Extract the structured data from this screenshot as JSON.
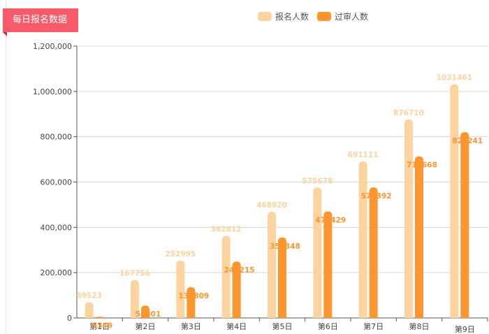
{
  "title": "每日报名数据",
  "colors": {
    "series1": "#fdd3a0",
    "series2": "#fd962f",
    "ribbon": "#f75b6a"
  },
  "chart_data": {
    "type": "bar",
    "categories": [
      "第1日",
      "第2日",
      "第3日",
      "第4日",
      "第5日",
      "第6日",
      "第7日",
      "第8日",
      "第9日"
    ],
    "series": [
      {
        "name": "报名人数",
        "values": [
          69523,
          167756,
          252995,
          362612,
          468920,
          575678,
          691111,
          876710,
          1031461
        ]
      },
      {
        "name": "过审人数",
        "values": [
          5349,
          54801,
          135809,
          249215,
          355348,
          470429,
          576392,
          713668,
          820241
        ]
      }
    ],
    "ylim": [
      0,
      1200000
    ],
    "yticks": [
      "0",
      "200,000",
      "400,000",
      "600,000",
      "800,000",
      "1,000,000",
      "1,200,000"
    ],
    "grid": true,
    "legend_position": "top-center"
  }
}
